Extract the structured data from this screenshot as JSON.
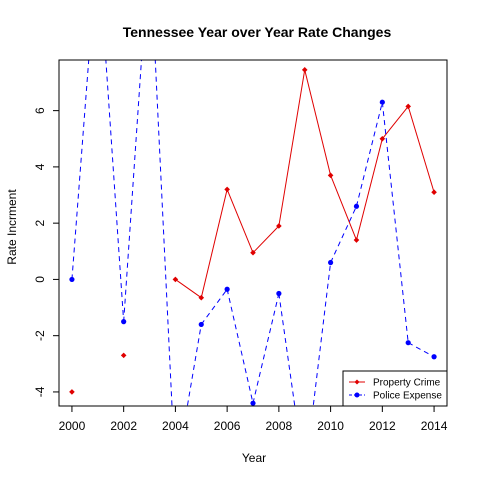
{
  "chart_data": {
    "type": "line",
    "title": "Tennessee Year over Year Rate Changes",
    "xlabel": "Year",
    "ylabel": "Rate Incrment",
    "xlim": [
      1999.5,
      2014.5
    ],
    "ylim": [
      -4.5,
      7.8
    ],
    "x_ticks": [
      2000,
      2002,
      2004,
      2006,
      2008,
      2010,
      2012,
      2014
    ],
    "y_ticks": [
      -4,
      -2,
      0,
      2,
      4,
      6
    ],
    "legend_position": "bottom-right",
    "series": [
      {
        "name": "Property Crime",
        "color": "#e00000",
        "line_style": "solid",
        "marker": "diamond",
        "x": [
          2000,
          2002,
          2004,
          2005,
          2006,
          2007,
          2008,
          2009,
          2010,
          2011,
          2012,
          2013,
          2014
        ],
        "values": [
          -4.0,
          -2.7,
          0.0,
          -0.65,
          3.2,
          0.95,
          1.9,
          7.45,
          3.7,
          1.4,
          5.0,
          6.15,
          3.1
        ],
        "connected": [
          false,
          false,
          true,
          true,
          true,
          true,
          true,
          true,
          true,
          true,
          true,
          true,
          true
        ]
      },
      {
        "name": "Police Expense",
        "color": "#0000ff",
        "line_style": "dashed",
        "marker": "circle",
        "x": [
          2000,
          2001,
          2002,
          2003,
          2004,
          2005,
          2006,
          2007,
          2008,
          2009,
          2010,
          2011,
          2012,
          2013,
          2014
        ],
        "values": [
          0.0,
          null,
          -1.5,
          null,
          -7.0,
          -1.6,
          -0.35,
          -4.4,
          -0.5,
          -7.0,
          0.6,
          2.6,
          6.3,
          -2.25,
          -2.75
        ],
        "plotted_points": [
          0,
          2,
          5,
          6,
          7,
          8,
          10,
          11,
          12,
          13,
          14
        ]
      }
    ]
  }
}
